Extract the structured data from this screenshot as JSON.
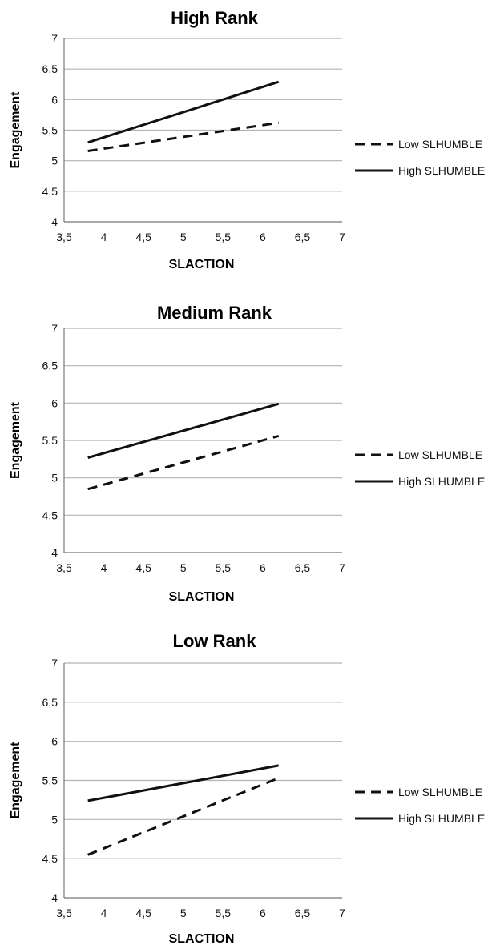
{
  "chart_data": [
    {
      "type": "line",
      "title": "High Rank",
      "xlabel": "SLACTION",
      "ylabel": "Engagement",
      "xlim": [
        3.5,
        7
      ],
      "ylim": [
        4,
        7
      ],
      "x_ticks": [
        "3,5",
        "4",
        "4,5",
        "5",
        "5,5",
        "6",
        "6,5",
        "7"
      ],
      "y_ticks": [
        "4",
        "4,5",
        "5",
        "5,5",
        "6",
        "6,5",
        "7"
      ],
      "grid": "horizontal",
      "legend_position": "right",
      "series": [
        {
          "name": "Low SLHUMBLE",
          "style": "dashed",
          "x": [
            3.8,
            6.2
          ],
          "y": [
            5.16,
            5.62
          ]
        },
        {
          "name": "High SLHUMBLE",
          "style": "solid",
          "x": [
            3.8,
            6.2
          ],
          "y": [
            5.3,
            6.29
          ]
        }
      ]
    },
    {
      "type": "line",
      "title": "Medium Rank",
      "xlabel": "SLACTION",
      "ylabel": "Engagement",
      "xlim": [
        3.5,
        7
      ],
      "ylim": [
        4,
        7
      ],
      "x_ticks": [
        "3,5",
        "4",
        "4,5",
        "5",
        "5,5",
        "6",
        "6,5",
        "7"
      ],
      "y_ticks": [
        "4",
        "4,5",
        "5",
        "5,5",
        "6",
        "6,5",
        "7"
      ],
      "grid": "horizontal",
      "legend_position": "right",
      "series": [
        {
          "name": "Low SLHUMBLE",
          "style": "dashed",
          "x": [
            3.8,
            6.2
          ],
          "y": [
            4.85,
            5.56
          ]
        },
        {
          "name": "High SLHUMBLE",
          "style": "solid",
          "x": [
            3.8,
            6.2
          ],
          "y": [
            5.27,
            5.99
          ]
        }
      ]
    },
    {
      "type": "line",
      "title": "Low Rank",
      "xlabel": "SLACTION",
      "ylabel": "Engagement",
      "xlim": [
        3.5,
        7
      ],
      "ylim": [
        4,
        7
      ],
      "x_ticks": [
        "3,5",
        "4",
        "4,5",
        "5",
        "5,5",
        "6",
        "6,5",
        "7"
      ],
      "y_ticks": [
        "4",
        "4,5",
        "5",
        "5,5",
        "6",
        "6,5",
        "7"
      ],
      "grid": "horizontal",
      "legend_position": "right",
      "series": [
        {
          "name": "Low SLHUMBLE",
          "style": "dashed",
          "x": [
            3.8,
            6.2
          ],
          "y": [
            4.55,
            5.53
          ]
        },
        {
          "name": "High SLHUMBLE",
          "style": "solid",
          "x": [
            3.8,
            6.2
          ],
          "y": [
            5.24,
            5.69
          ]
        }
      ]
    }
  ],
  "colors": {
    "line": "#111111",
    "grid": "#b3b3b3",
    "axis": "#777777"
  }
}
